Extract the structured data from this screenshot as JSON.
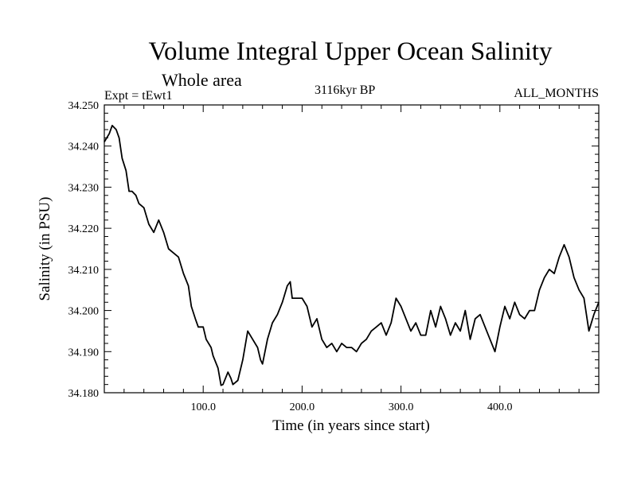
{
  "chart_data": {
    "type": "line",
    "title": "Volume Integral Upper Ocean Salinity",
    "subtitle": "Whole area",
    "experiment_label": "Expt = tEwt1",
    "period_label": "3116kyr BP",
    "months_label": "ALL_MONTHS",
    "xlabel": "Time (in years since start)",
    "ylabel": "Salinity (in PSU)",
    "xlim": [
      0,
      500
    ],
    "ylim": [
      34.18,
      34.25
    ],
    "x_ticks": [
      100,
      200,
      300,
      400
    ],
    "x_tick_labels": [
      "100.0",
      "200.0",
      "300.0",
      "400.0"
    ],
    "y_ticks": [
      34.18,
      34.19,
      34.2,
      34.21,
      34.22,
      34.23,
      34.24,
      34.25
    ],
    "y_tick_labels": [
      "34.180",
      "34.190",
      "34.200",
      "34.210",
      "34.220",
      "34.230",
      "34.240",
      "34.250"
    ],
    "grid": false,
    "series": [
      {
        "name": "Salinity",
        "color": "#000000",
        "x": [
          0,
          5,
          8,
          12,
          15,
          18,
          22,
          25,
          28,
          32,
          35,
          40,
          45,
          50,
          55,
          60,
          65,
          70,
          75,
          80,
          85,
          88,
          92,
          95,
          100,
          103,
          108,
          110,
          115,
          118,
          120,
          125,
          128,
          130,
          135,
          140,
          145,
          150,
          155,
          158,
          160,
          165,
          170,
          175,
          180,
          185,
          188,
          190,
          195,
          200,
          205,
          210,
          215,
          220,
          225,
          230,
          235,
          240,
          245,
          250,
          255,
          260,
          265,
          270,
          275,
          280,
          285,
          290,
          295,
          300,
          305,
          310,
          315,
          320,
          325,
          330,
          335,
          340,
          345,
          350,
          355,
          360,
          365,
          370,
          375,
          380,
          385,
          390,
          395,
          400,
          405,
          410,
          415,
          420,
          425,
          430,
          435,
          440,
          445,
          450,
          455,
          460,
          465,
          470,
          475,
          480,
          485,
          490,
          495,
          500
        ],
        "values": [
          34.241,
          34.243,
          34.245,
          34.244,
          34.242,
          34.237,
          34.234,
          34.229,
          34.229,
          34.228,
          34.226,
          34.225,
          34.221,
          34.219,
          34.222,
          34.219,
          34.215,
          34.214,
          34.213,
          34.209,
          34.206,
          34.201,
          34.198,
          34.196,
          34.196,
          34.193,
          34.191,
          34.189,
          34.186,
          34.1818,
          34.182,
          34.185,
          34.1835,
          34.182,
          34.183,
          34.188,
          34.195,
          34.193,
          34.191,
          34.188,
          34.187,
          34.193,
          34.197,
          34.199,
          34.202,
          34.206,
          34.207,
          34.203,
          34.203,
          34.203,
          34.201,
          34.196,
          34.198,
          34.193,
          34.191,
          34.192,
          34.19,
          34.192,
          34.191,
          34.191,
          34.19,
          34.192,
          34.193,
          34.195,
          34.196,
          34.197,
          34.194,
          34.197,
          34.203,
          34.201,
          34.198,
          34.195,
          34.197,
          34.194,
          34.194,
          34.2,
          34.196,
          34.201,
          34.198,
          34.194,
          34.197,
          34.195,
          34.2,
          34.193,
          34.198,
          34.199,
          34.196,
          34.193,
          34.19,
          34.196,
          34.201,
          34.198,
          34.202,
          34.199,
          34.198,
          34.2,
          34.2,
          34.205,
          34.208,
          34.21,
          34.209,
          34.213,
          34.216,
          34.213,
          34.208,
          34.205,
          34.203,
          34.195,
          34.199,
          34.202
        ]
      }
    ]
  }
}
